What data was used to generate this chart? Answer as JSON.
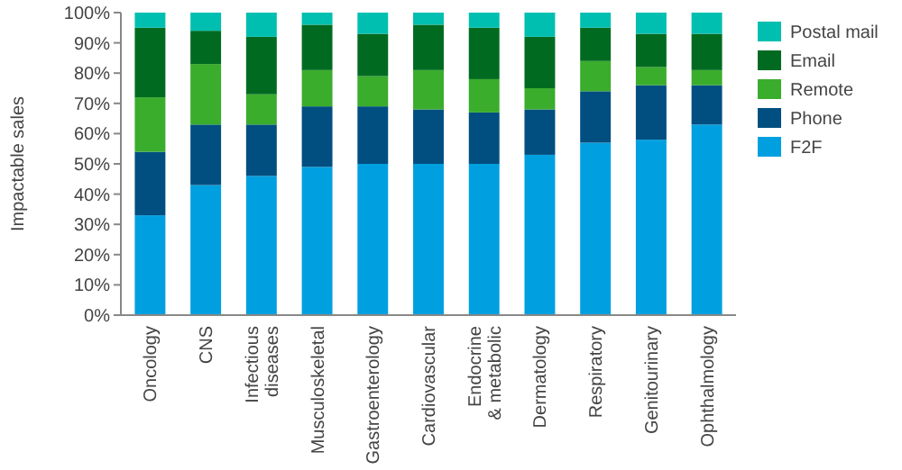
{
  "chart_data": {
    "type": "bar",
    "stacked": true,
    "ylabel": "Impactable sales",
    "categories": [
      "Oncology",
      "CNS",
      "Infectious diseases",
      "Musculoskeletal",
      "Gastroenterology",
      "Cardiovascular",
      "Endocrine & metabolic",
      "Dermatology",
      "Respiratory",
      "Genitourinary",
      "Ophthalmology"
    ],
    "series": [
      {
        "name": "F2F",
        "color": "#00a0e0",
        "values": [
          33,
          43,
          46,
          49,
          50,
          50,
          50,
          53,
          57,
          58,
          63
        ]
      },
      {
        "name": "Phone",
        "color": "#004f80",
        "values": [
          21,
          20,
          17,
          20,
          19,
          18,
          17,
          15,
          17,
          18,
          13
        ]
      },
      {
        "name": "Remote",
        "color": "#3aad2c",
        "values": [
          18,
          20,
          10,
          12,
          10,
          13,
          11,
          7,
          10,
          6,
          5
        ]
      },
      {
        "name": "Email",
        "color": "#006b20",
        "values": [
          23,
          11,
          19,
          15,
          14,
          15,
          17,
          17,
          11,
          11,
          12
        ]
      },
      {
        "name": "Postal mail",
        "color": "#00bfb0",
        "values": [
          5,
          6,
          8,
          4,
          7,
          4,
          5,
          8,
          5,
          7,
          7
        ]
      }
    ],
    "ylim": [
      0,
      100
    ],
    "yticks": [
      {
        "value": 0,
        "label": "0%"
      },
      {
        "value": 10,
        "label": "10%"
      },
      {
        "value": 20,
        "label": "20%"
      },
      {
        "value": 30,
        "label": "30%"
      },
      {
        "value": 40,
        "label": "40%"
      },
      {
        "value": 50,
        "label": "50%"
      },
      {
        "value": 60,
        "label": "60%"
      },
      {
        "value": 70,
        "label": "70%"
      },
      {
        "value": 80,
        "label": "80%"
      },
      {
        "value": 90,
        "label": "90%"
      },
      {
        "value": 100,
        "label": "100%"
      }
    ],
    "grid": false,
    "legend": "right"
  }
}
